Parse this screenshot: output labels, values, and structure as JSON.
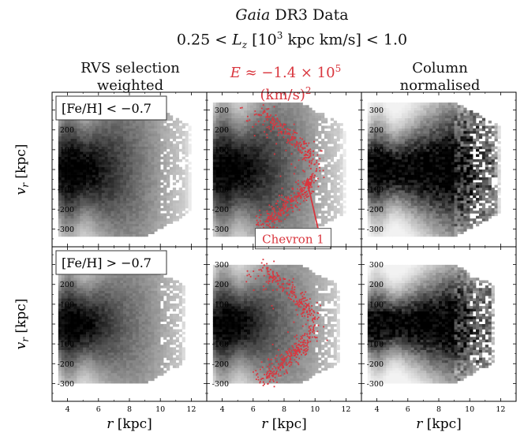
{
  "figure": {
    "title_line1_italic": "Gaia",
    "title_line1_rest": " DR3 Data",
    "title_line2": "0.25 < L_z [10^3 kpc km/s] < 1.0"
  },
  "columns": [
    {
      "header_line1": "RVS selection",
      "header_line2": "weighted"
    },
    {
      "header_line1": "E ≈ −1.4 × 10^5",
      "header_line2": "(km/s)^2",
      "color": "#d9363e"
    },
    {
      "header_line1": "Column",
      "header_line2": "normalised"
    }
  ],
  "rows": [
    {
      "label": "[Fe/H] < −0.7"
    },
    {
      "label": "[Fe/H] > −0.7"
    }
  ],
  "annotation": {
    "label": "Chevron 1",
    "color": "#d9363e"
  },
  "chart_data": {
    "type": "heatmap",
    "title": "Gaia DR3 Data, 0.25 < L_z [10^3 kpc km/s] < 1.0",
    "xlabel": "r [kpc]",
    "ylabel": "v_r [kpc]",
    "xlim": [
      3,
      13
    ],
    "ylim": [
      -390,
      390
    ],
    "xticks": [
      4,
      6,
      8,
      10,
      12
    ],
    "yticks": [
      -300,
      -200,
      -100,
      0,
      100,
      200,
      300
    ],
    "panels": [
      {
        "row": 0,
        "col": 0,
        "metallicity": "[Fe/H] < −0.7",
        "normalisation": "RVS selection weighted",
        "overlay": null
      },
      {
        "row": 0,
        "col": 1,
        "metallicity": "[Fe/H] < −0.7",
        "normalisation": "RVS selection weighted",
        "overlay": "E ≈ −1.4 × 10^5 (km/s)^2",
        "annotation": "Chevron 1",
        "arrow_to": [
          9.5,
          -40
        ]
      },
      {
        "row": 0,
        "col": 2,
        "metallicity": "[Fe/H] < −0.7",
        "normalisation": "Column normalised",
        "overlay": null
      },
      {
        "row": 1,
        "col": 0,
        "metallicity": "[Fe/H] > −0.7",
        "normalisation": "RVS selection weighted",
        "overlay": null
      },
      {
        "row": 1,
        "col": 1,
        "metallicity": "[Fe/H] > −0.7",
        "normalisation": "RVS selection weighted",
        "overlay": "E ≈ −1.4 × 10^5 (km/s)^2"
      },
      {
        "row": 1,
        "col": 2,
        "metallicity": "[Fe/H] > −0.7",
        "normalisation": "Column normalised",
        "overlay": null
      }
    ],
    "overlay_color": "#d9363e",
    "chevron_vertex": {
      "row0_r_kpc": 10.0,
      "row1_r_kpc": 9.9
    },
    "chevron_peak_speed_kms": 300
  }
}
